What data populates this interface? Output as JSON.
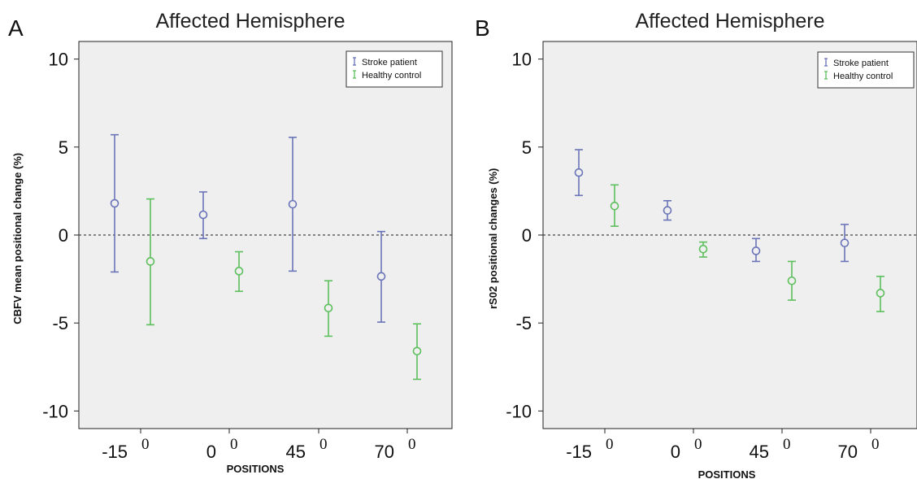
{
  "chart_data": [
    {
      "type": "errorbar",
      "panel_label": "A",
      "title": "Affected Hemisphere",
      "xlabel": "POSITIONS",
      "ylabel": "CBFV mean positional change (%)",
      "ylim": [
        -11,
        11
      ],
      "yticks": [
        10,
        5,
        0,
        -5,
        -10
      ],
      "categories": [
        {
          "label": "-15",
          "sup": "0"
        },
        {
          "label": "0",
          "sup": "0"
        },
        {
          "label": "45",
          "sup": "0"
        },
        {
          "label": "70",
          "sup": "0"
        }
      ],
      "reference_line": 0,
      "series": [
        {
          "name": "Stroke patient",
          "color": "#6a74b8",
          "mean": [
            1.8,
            1.15,
            1.75,
            -2.35
          ],
          "lower": [
            -2.1,
            -0.2,
            -2.05,
            -4.95
          ],
          "upper": [
            5.7,
            2.45,
            5.55,
            0.2
          ]
        },
        {
          "name": "Healthy control",
          "color": "#5dbf5d",
          "mean": [
            -1.5,
            -2.05,
            -4.15,
            -6.6
          ],
          "lower": [
            -5.1,
            -3.2,
            -5.75,
            -8.2
          ],
          "upper": [
            2.05,
            -0.95,
            -2.6,
            -5.05
          ]
        }
      ],
      "legend_position": "top-right"
    },
    {
      "type": "errorbar",
      "panel_label": "B",
      "title": "Affected Hemisphere",
      "xlabel": "POSITIONS",
      "ylabel": "rS02 positional changes (%)",
      "ylim": [
        -11,
        11
      ],
      "yticks": [
        10,
        5,
        0,
        -5,
        -10
      ],
      "categories": [
        {
          "label": "-15",
          "sup": "0"
        },
        {
          "label": "0",
          "sup": "0"
        },
        {
          "label": "45",
          "sup": "0"
        },
        {
          "label": "70",
          "sup": "0"
        }
      ],
      "reference_line": 0,
      "series": [
        {
          "name": "Stroke patient",
          "color": "#6a74b8",
          "mean": [
            3.55,
            1.4,
            -0.9,
            -0.45
          ],
          "lower": [
            2.25,
            0.85,
            -1.5,
            -1.5
          ],
          "upper": [
            4.85,
            1.95,
            -0.2,
            0.6
          ]
        },
        {
          "name": "Healthy control",
          "color": "#5dbf5d",
          "mean": [
            1.65,
            -0.8,
            -2.6,
            -3.3
          ],
          "lower": [
            0.5,
            -1.25,
            -3.7,
            -4.35
          ],
          "upper": [
            2.85,
            -0.4,
            -1.5,
            -2.35
          ]
        }
      ],
      "legend_position": "top-right"
    }
  ]
}
